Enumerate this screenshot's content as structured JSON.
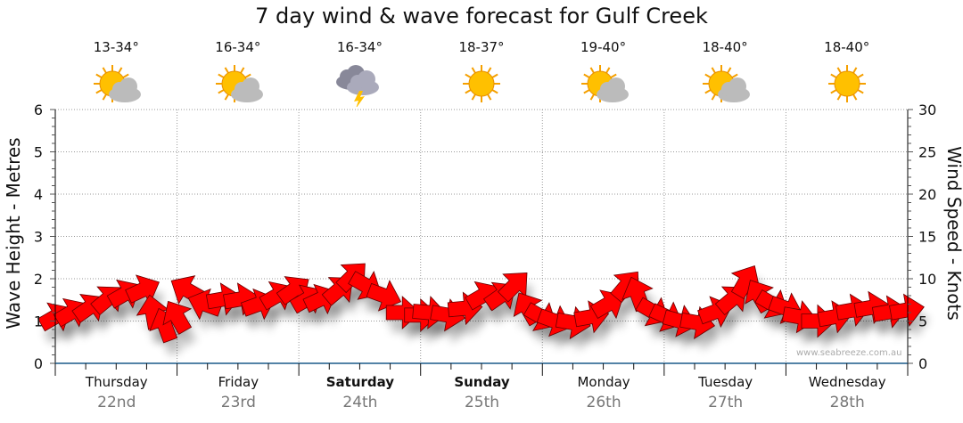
{
  "chart_data": {
    "type": "scatter",
    "title": "7 day wind & wave forecast for Gulf Creek",
    "ylabel_left": "Wave Height - Metres",
    "ylabel_right": "Wind Speed - Knots",
    "ylim_left": [
      0,
      6
    ],
    "ylim_right": [
      0,
      30
    ],
    "yticks_left": [
      "0",
      "1",
      "2",
      "3",
      "4",
      "5",
      "6"
    ],
    "yticks_right": [
      "0",
      "5",
      "10",
      "15",
      "20",
      "25",
      "30"
    ],
    "grid": true,
    "days": [
      {
        "name": "Thursday",
        "date": "22nd",
        "temp": "13-34°",
        "icon": "partly-cloudy-icon",
        "bold": false
      },
      {
        "name": "Friday",
        "date": "23rd",
        "temp": "16-34°",
        "icon": "partly-cloudy-icon",
        "bold": false
      },
      {
        "name": "Saturday",
        "date": "24th",
        "temp": "16-34°",
        "icon": "thunderstorm-icon",
        "bold": true
      },
      {
        "name": "Sunday",
        "date": "25th",
        "temp": "18-37°",
        "icon": "sunny-icon",
        "bold": true
      },
      {
        "name": "Monday",
        "date": "26th",
        "temp": "19-40°",
        "icon": "partly-cloudy-icon",
        "bold": false
      },
      {
        "name": "Tuesday",
        "date": "27th",
        "temp": "18-40°",
        "icon": "partly-cloudy-icon",
        "bold": false
      },
      {
        "name": "Wednesday",
        "date": "28th",
        "temp": "18-40°",
        "icon": "sunny-icon",
        "bold": false
      }
    ],
    "wind_series": {
      "name": "Wind (knots, arrow direction in degrees, 0=up)",
      "x_days": [
        0,
        0.13,
        0.28,
        0.43,
        0.57,
        0.72,
        0.8,
        0.9,
        1.0,
        1.08,
        1.23,
        1.38,
        1.52,
        1.67,
        1.82,
        1.96,
        2.07,
        2.18,
        2.33,
        2.44,
        2.55,
        2.7,
        2.85,
        3.0,
        3.07,
        3.22,
        3.36,
        3.51,
        3.66,
        3.77,
        3.88,
        3.99,
        4.1,
        4.25,
        4.4,
        4.54,
        4.69,
        4.78,
        4.91,
        5.02,
        5.13,
        5.27,
        5.42,
        5.56,
        5.67,
        5.78,
        5.89,
        6.0,
        6.11,
        6.26,
        6.4,
        6.55,
        6.7,
        6.85,
        6.99
      ],
      "speed": [
        5.5,
        6,
        6.6,
        7.6,
        8.2,
        8.7,
        6,
        4.5,
        5.5,
        8.7,
        7,
        7.6,
        7.6,
        7,
        8,
        8.7,
        7.6,
        7.6,
        8.7,
        10.3,
        9.2,
        8,
        6,
        5.7,
        6,
        5.7,
        6.5,
        8,
        8,
        9.2,
        6.5,
        5.5,
        5,
        4.8,
        5.5,
        7,
        9.2,
        8.2,
        6.1,
        5.5,
        5,
        4.8,
        6.1,
        7.6,
        9.7,
        8,
        7,
        6.5,
        5.5,
        5,
        5.5,
        6.3,
        6.6,
        6.1,
        6.3
      ],
      "direction": [
        60,
        60,
        55,
        50,
        60,
        65,
        350,
        340,
        330,
        300,
        290,
        80,
        80,
        70,
        60,
        55,
        60,
        65,
        50,
        45,
        120,
        110,
        90,
        90,
        95,
        100,
        85,
        60,
        55,
        45,
        330,
        120,
        110,
        100,
        80,
        60,
        40,
        340,
        120,
        115,
        105,
        100,
        70,
        50,
        30,
        330,
        120,
        110,
        100,
        90,
        80,
        80,
        80,
        80,
        80
      ]
    },
    "credit": "www.seabreeze.com.au"
  }
}
